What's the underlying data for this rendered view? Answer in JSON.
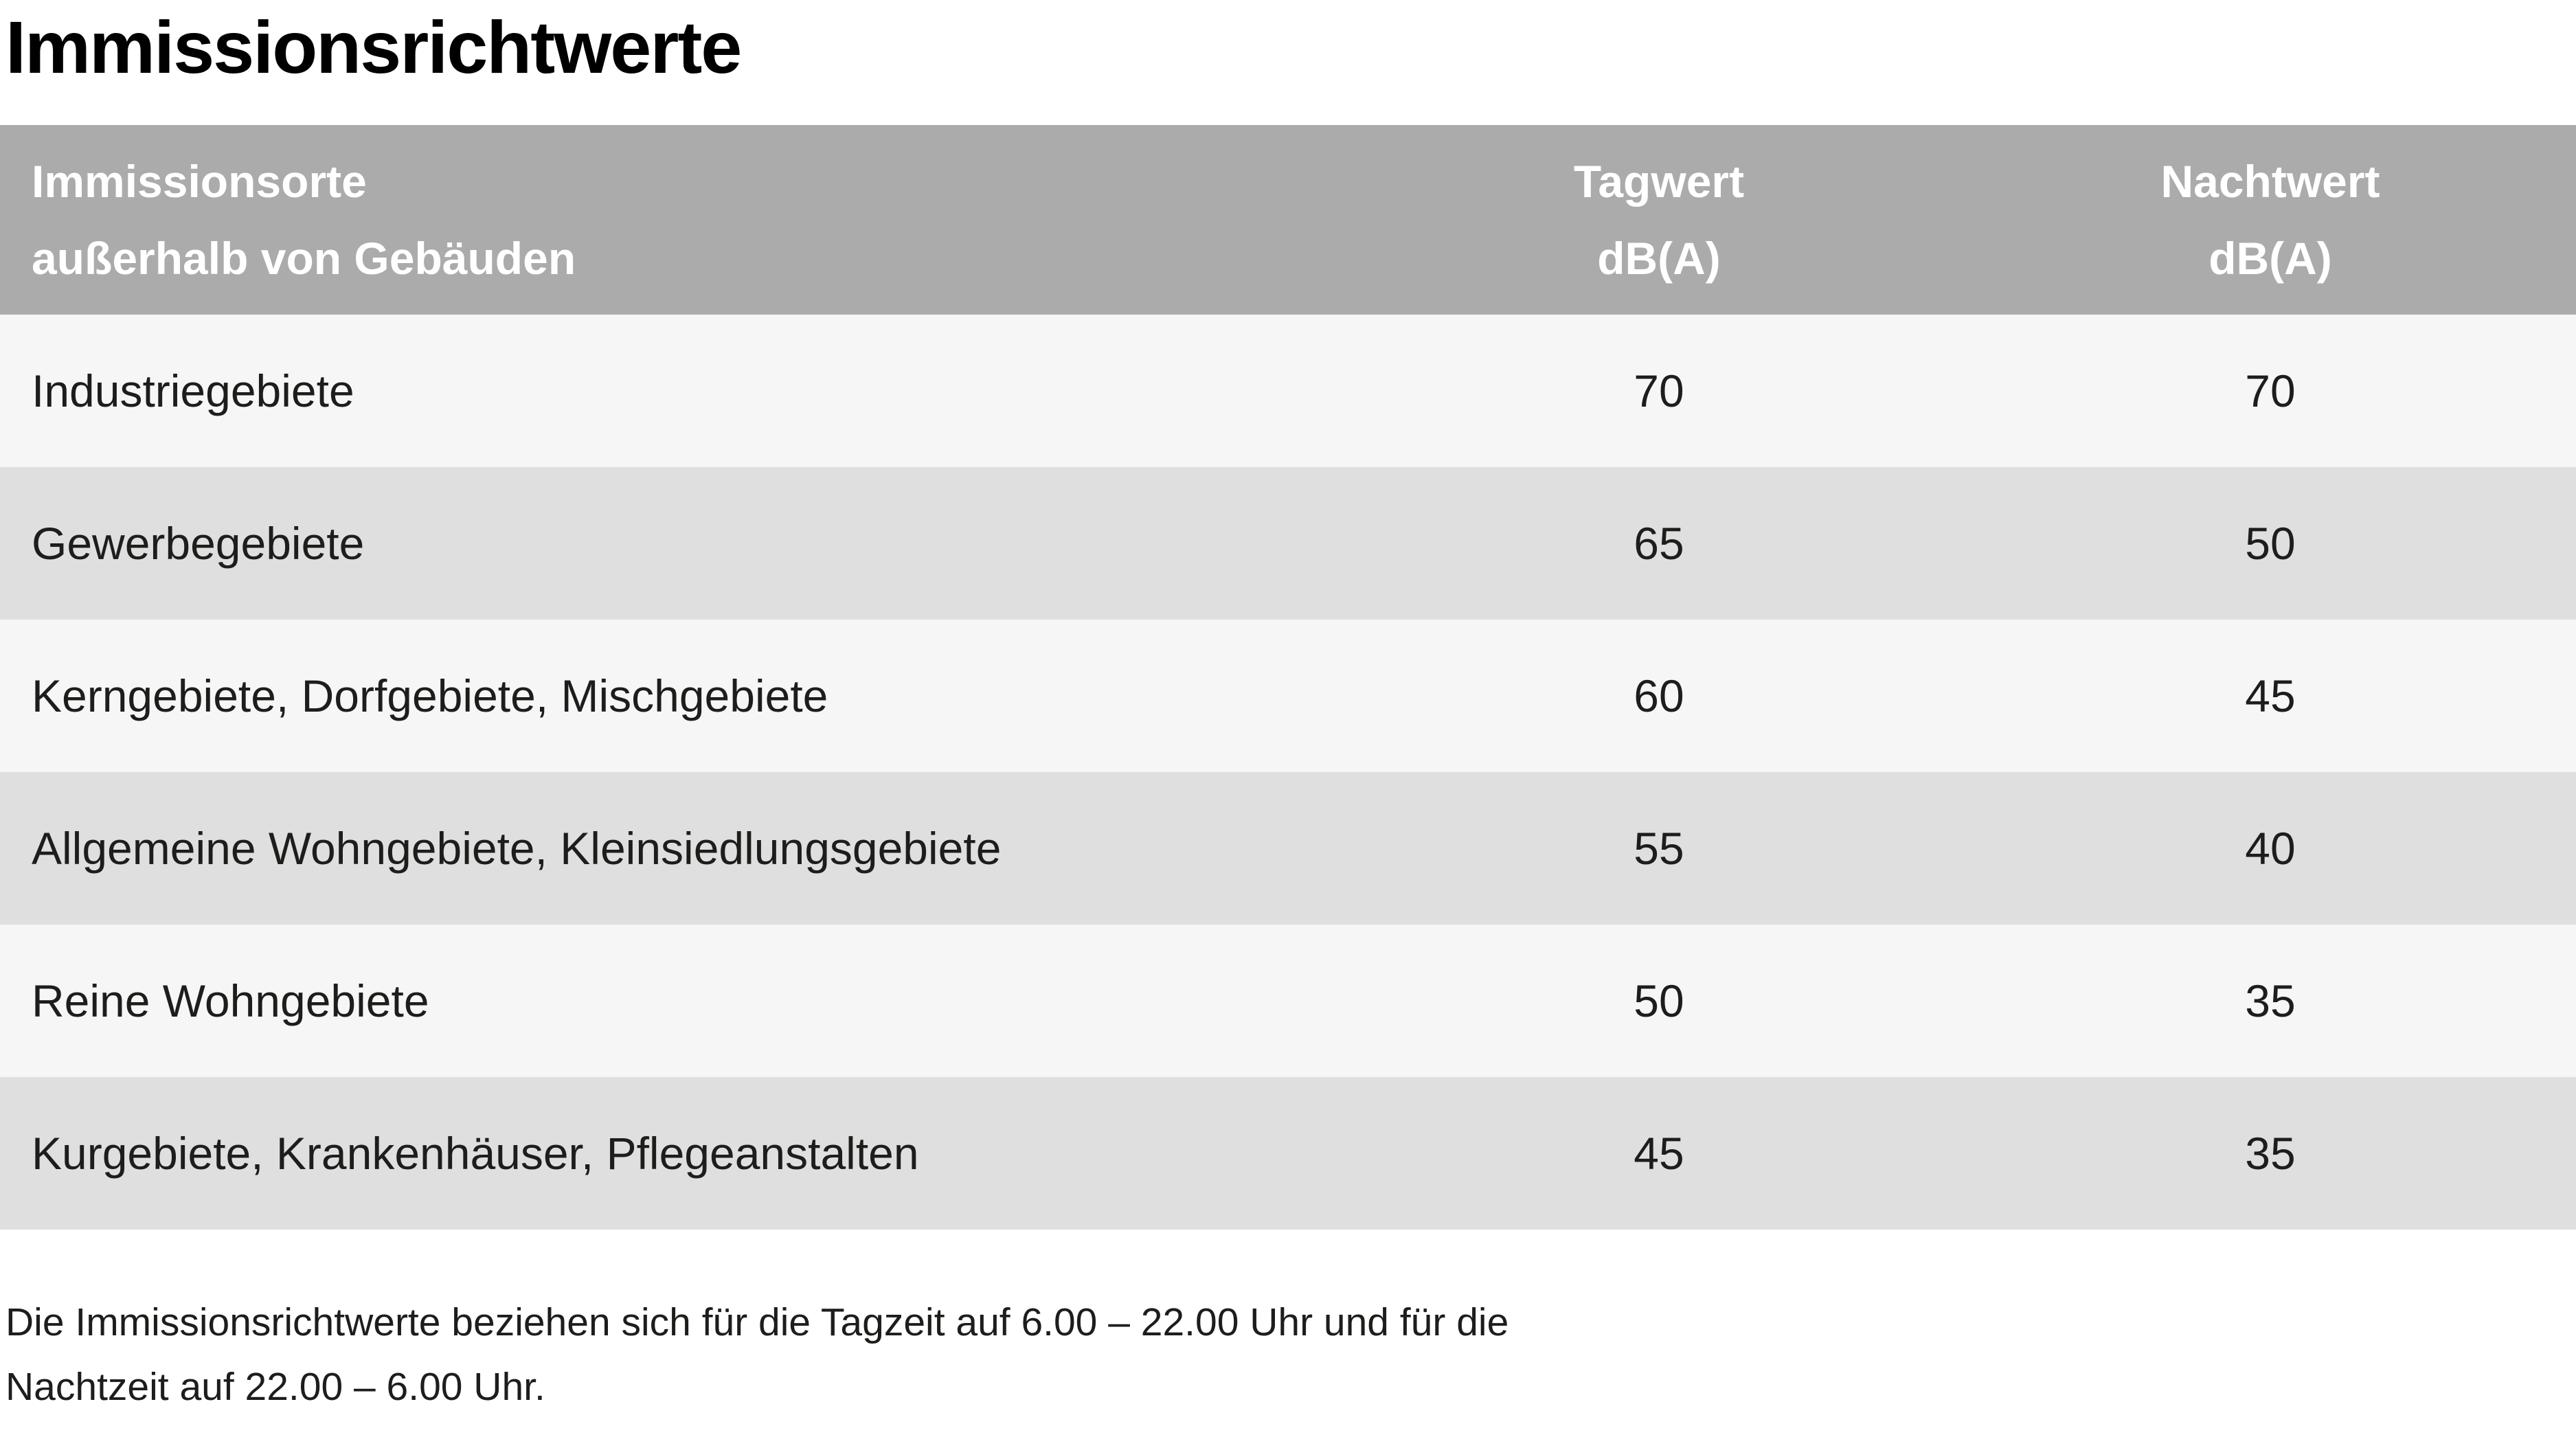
{
  "page": {
    "title": "Immissionsrichtwerte"
  },
  "colors": {
    "header_bg": "#ababab",
    "header_text": "#ffffff",
    "row_light": "#f6f6f6",
    "row_dark": "#dfdfdf",
    "body_text": "#1d1d1b"
  },
  "table": {
    "header": {
      "col1_line1": "Immissionsorte",
      "col1_line2": "außerhalb von Gebäuden",
      "col2_line1": "Tagwert",
      "col2_line2": "dB(A)",
      "col3_line1": "Nachtwert",
      "col3_line2": "dB(A)"
    },
    "rows": [
      {
        "label": "Industriegebiete",
        "tagwert": "70",
        "nachtwert": "70"
      },
      {
        "label": "Gewerbegebiete",
        "tagwert": "65",
        "nachtwert": "50"
      },
      {
        "label": "Kerngebiete, Dorfgebiete, Mischgebiete",
        "tagwert": "60",
        "nachtwert": "45"
      },
      {
        "label": "Allgemeine Wohngebiete, Kleinsiedlungsgebiete",
        "tagwert": "55",
        "nachtwert": "40"
      },
      {
        "label": "Reine Wohngebiete",
        "tagwert": "50",
        "nachtwert": "35"
      },
      {
        "label": "Kurgebiete, Krankenhäuser, Pflegeanstalten",
        "tagwert": "45",
        "nachtwert": "35"
      }
    ]
  },
  "footnote": {
    "line1": "Die Immissionsrichtwerte beziehen sich für die Tagzeit auf 6.00 – 22.00 Uhr und für die",
    "line2": "Nachtzeit auf 22.00 – 6.00 Uhr."
  },
  "chart_data": {
    "type": "table",
    "title": "Immissionsrichtwerte",
    "columns": [
      "Immissionsorte außerhalb von Gebäuden",
      "Tagwert dB(A)",
      "Nachtwert dB(A)"
    ],
    "rows": [
      [
        "Industriegebiete",
        70,
        70
      ],
      [
        "Gewerbegebiete",
        65,
        50
      ],
      [
        "Kerngebiete, Dorfgebiete, Mischgebiete",
        60,
        45
      ],
      [
        "Allgemeine Wohngebiete, Kleinsiedlungsgebiete",
        55,
        40
      ],
      [
        "Reine Wohngebiete",
        50,
        35
      ],
      [
        "Kurgebiete, Krankenhäuser, Pflegeanstalten",
        45,
        35
      ]
    ]
  }
}
